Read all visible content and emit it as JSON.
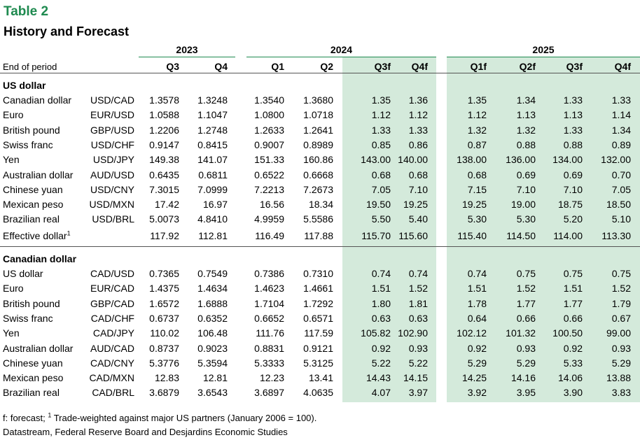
{
  "title": "Table 2",
  "subtitle": "History and Forecast",
  "years": [
    "2023",
    "2024",
    "2025"
  ],
  "period_label": "End of period",
  "quarters": [
    "Q3",
    "Q4",
    "Q1",
    "Q2",
    "Q3f",
    "Q4f",
    "Q1f",
    "Q2f",
    "Q3f",
    "Q4f"
  ],
  "shade_color": "#d4eadb",
  "accent_color": "#1e8a4f",
  "sections": [
    {
      "title": "US dollar",
      "rows": [
        {
          "name": "Canadian dollar",
          "pair": "USD/CAD",
          "values": [
            "1.3578",
            "1.3248",
            "1.3540",
            "1.3680",
            "1.35",
            "1.36",
            "1.35",
            "1.34",
            "1.33",
            "1.33"
          ]
        },
        {
          "name": "Euro",
          "pair": "EUR/USD",
          "values": [
            "1.0588",
            "1.1047",
            "1.0800",
            "1.0718",
            "1.12",
            "1.12",
            "1.12",
            "1.13",
            "1.13",
            "1.14"
          ]
        },
        {
          "name": "British pound",
          "pair": "GBP/USD",
          "values": [
            "1.2206",
            "1.2748",
            "1.2633",
            "1.2641",
            "1.33",
            "1.33",
            "1.32",
            "1.32",
            "1.33",
            "1.34"
          ]
        },
        {
          "name": "Swiss franc",
          "pair": "USD/CHF",
          "values": [
            "0.9147",
            "0.8415",
            "0.9007",
            "0.8989",
            "0.85",
            "0.86",
            "0.87",
            "0.88",
            "0.88",
            "0.89"
          ]
        },
        {
          "name": "Yen",
          "pair": "USD/JPY",
          "values": [
            "149.38",
            "141.07",
            "151.33",
            "160.86",
            "143.00",
            "140.00",
            "138.00",
            "136.00",
            "134.00",
            "132.00"
          ]
        },
        {
          "name": "Australian dollar",
          "pair": "AUD/USD",
          "values": [
            "0.6435",
            "0.6811",
            "0.6522",
            "0.6668",
            "0.68",
            "0.68",
            "0.68",
            "0.69",
            "0.69",
            "0.70"
          ]
        },
        {
          "name": "Chinese yuan",
          "pair": "USD/CNY",
          "values": [
            "7.3015",
            "7.0999",
            "7.2213",
            "7.2673",
            "7.05",
            "7.10",
            "7.15",
            "7.10",
            "7.10",
            "7.05"
          ]
        },
        {
          "name": "Mexican peso",
          "pair": "USD/MXN",
          "values": [
            "17.42",
            "16.97",
            "16.56",
            "18.34",
            "19.50",
            "19.25",
            "19.25",
            "19.00",
            "18.75",
            "18.50"
          ]
        },
        {
          "name": "Brazilian real",
          "pair": "USD/BRL",
          "values": [
            "5.0073",
            "4.8410",
            "4.9959",
            "5.5586",
            "5.50",
            "5.40",
            "5.30",
            "5.30",
            "5.20",
            "5.10"
          ]
        },
        {
          "name": "Effective dollar",
          "sup": "1",
          "pair": "",
          "values": [
            "117.92",
            "112.81",
            "116.49",
            "117.88",
            "115.70",
            "115.60",
            "115.40",
            "114.50",
            "114.00",
            "113.30"
          ]
        }
      ]
    },
    {
      "title": "Canadian dollar",
      "rows": [
        {
          "name": "US dollar",
          "pair": "CAD/USD",
          "values": [
            "0.7365",
            "0.7549",
            "0.7386",
            "0.7310",
            "0.74",
            "0.74",
            "0.74",
            "0.75",
            "0.75",
            "0.75"
          ]
        },
        {
          "name": "Euro",
          "pair": "EUR/CAD",
          "values": [
            "1.4375",
            "1.4634",
            "1.4623",
            "1.4661",
            "1.51",
            "1.52",
            "1.51",
            "1.52",
            "1.51",
            "1.52"
          ]
        },
        {
          "name": "British pound",
          "pair": "GBP/CAD",
          "values": [
            "1.6572",
            "1.6888",
            "1.7104",
            "1.7292",
            "1.80",
            "1.81",
            "1.78",
            "1.77",
            "1.77",
            "1.79"
          ]
        },
        {
          "name": "Swiss franc",
          "pair": "CAD/CHF",
          "values": [
            "0.6737",
            "0.6352",
            "0.6652",
            "0.6571",
            "0.63",
            "0.63",
            "0.64",
            "0.66",
            "0.66",
            "0.67"
          ]
        },
        {
          "name": "Yen",
          "pair": "CAD/JPY",
          "values": [
            "110.02",
            "106.48",
            "111.76",
            "117.59",
            "105.82",
            "102.90",
            "102.12",
            "101.32",
            "100.50",
            "99.00"
          ]
        },
        {
          "name": "Australian dollar",
          "pair": "AUD/CAD",
          "values": [
            "0.8737",
            "0.9023",
            "0.8831",
            "0.9121",
            "0.92",
            "0.93",
            "0.92",
            "0.93",
            "0.92",
            "0.93"
          ]
        },
        {
          "name": "Chinese yuan",
          "pair": "CAD/CNY",
          "values": [
            "5.3776",
            "5.3594",
            "5.3333",
            "5.3125",
            "5.22",
            "5.22",
            "5.29",
            "5.29",
            "5.33",
            "5.29"
          ]
        },
        {
          "name": "Mexican peso",
          "pair": "CAD/MXN",
          "values": [
            "12.83",
            "12.81",
            "12.23",
            "13.41",
            "14.43",
            "14.15",
            "14.25",
            "14.16",
            "14.06",
            "13.88"
          ]
        },
        {
          "name": "Brazilian real",
          "pair": "CAD/BRL",
          "values": [
            "3.6879",
            "3.6543",
            "3.6897",
            "4.0635",
            "4.07",
            "3.97",
            "3.92",
            "3.95",
            "3.90",
            "3.83"
          ]
        }
      ]
    }
  ],
  "footnote": {
    "prefix": "f: forecast; ",
    "sup": "1",
    "text": " Trade-weighted against major US partners (January 2006 = 100).",
    "source": "Datastream, Federal Reserve Board and Desjardins Economic Studies"
  }
}
